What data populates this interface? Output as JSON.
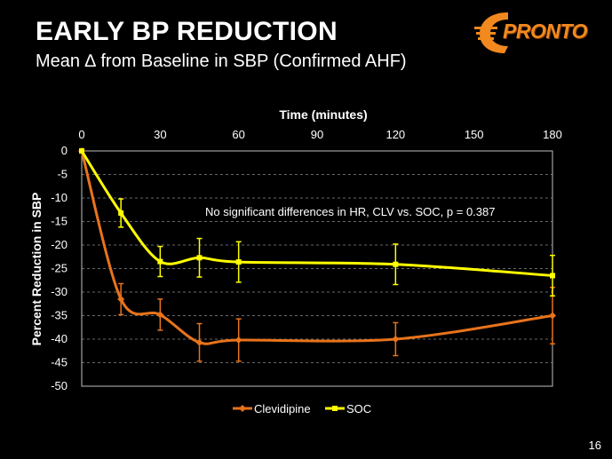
{
  "slide": {
    "title": "EARLY BP REDUCTION",
    "subtitle": "Mean ∆ from Baseline in SBP (Confirmed AHF)",
    "page_number": "16"
  },
  "logo": {
    "text": "PRONTO",
    "mark": "C",
    "color": "#f2891f"
  },
  "chart_data": {
    "type": "line",
    "title": "",
    "xlabel": "Time (minutes)",
    "ylabel": "Percent Reduction in SBP",
    "x_ticks": [
      0,
      30,
      60,
      90,
      120,
      150,
      180
    ],
    "y_ticks": [
      0,
      -5,
      -10,
      -15,
      -20,
      -25,
      -30,
      -35,
      -40,
      -45,
      -50
    ],
    "xlim": [
      0,
      180
    ],
    "ylim": [
      -50,
      0
    ],
    "x_axis_position": "top",
    "grid": "horizontal dashed",
    "legend_position": "bottom",
    "annotation": "No significant differences in HR, CLV vs. SOC,  p = 0.387",
    "series": [
      {
        "name": "Clevidipine",
        "color": "#e8731b",
        "x": [
          0,
          15,
          30,
          45,
          60,
          120,
          180
        ],
        "values": [
          0,
          -31.5,
          -34.8,
          -40.7,
          -40.2,
          -40,
          -35
        ],
        "error": [
          0,
          3.3,
          3.3,
          4,
          4.5,
          3.5,
          6
        ]
      },
      {
        "name": "SOC",
        "color": "#ffff00",
        "x": [
          0,
          15,
          30,
          45,
          60,
          120,
          180
        ],
        "values": [
          0,
          -13.2,
          -23.5,
          -22.7,
          -23.6,
          -24.1,
          -26.5
        ],
        "error": [
          0,
          3,
          3.2,
          4.1,
          4.3,
          4.3,
          4.3
        ]
      }
    ]
  }
}
